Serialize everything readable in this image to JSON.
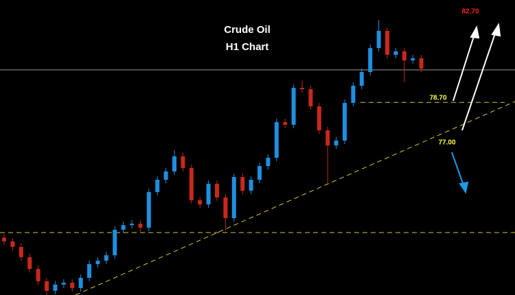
{
  "chart_data": {
    "type": "candlestick",
    "title": "Crude Oil",
    "subtitle": "H1 Chart",
    "ylim": [
      67.6,
      84.6
    ],
    "up_color": "#1e8fe0",
    "down_color": "#c8281e",
    "open": [
      70.9,
      70.69,
      70.37,
      69.78,
      69.1,
      68.39,
      67.84,
      68.2,
      68.31,
      68.0,
      68.59,
      69.38,
      69.58,
      69.89,
      71.36,
      71.63,
      71.71,
      71.48,
      73.53,
      74.24,
      74.72,
      75.59,
      74.92,
      73.06,
      72.82,
      74.01,
      73.22,
      72.03,
      74.4,
      73.61,
      74.24,
      75.03,
      75.51,
      77.56,
      77.41,
      79.54,
      79.46,
      78.47,
      77.09,
      76.22,
      76.5,
      78.67,
      79.66,
      80.45,
      81.83,
      82.82,
      81.44,
      81.64,
      81.12,
      81.24
    ],
    "high": [
      71.1,
      70.89,
      70.57,
      69.98,
      69.3,
      68.59,
      68.4,
      68.51,
      68.51,
      68.79,
      69.58,
      69.78,
      70.09,
      71.56,
      71.83,
      71.91,
      71.91,
      73.73,
      74.44,
      74.92,
      75.95,
      75.79,
      75.12,
      73.26,
      74.21,
      74.21,
      73.42,
      74.6,
      74.6,
      74.44,
      75.23,
      75.71,
      77.76,
      77.76,
      79.74,
      79.95,
      79.66,
      78.67,
      77.29,
      76.7,
      78.87,
      79.86,
      80.65,
      82.03,
      83.45,
      83.02,
      81.84,
      81.84,
      81.44,
      81.44
    ],
    "low": [
      70.49,
      70.17,
      69.58,
      68.9,
      68.19,
      67.6,
      67.64,
      68.0,
      67.8,
      67.8,
      68.39,
      69.18,
      69.38,
      69.69,
      71.16,
      71.43,
      71.28,
      71.28,
      73.33,
      74.04,
      74.52,
      74.72,
      72.86,
      72.62,
      72.62,
      73.02,
      71.3,
      71.83,
      73.41,
      73.41,
      74.04,
      74.83,
      75.31,
      77.21,
      77.21,
      79.26,
      78.27,
      76.89,
      74.0,
      76.02,
      76.3,
      78.47,
      79.46,
      80.25,
      81.63,
      81.24,
      81.24,
      79.85,
      80.92,
      80.45
    ],
    "close": [
      70.69,
      70.37,
      69.78,
      69.1,
      68.39,
      67.84,
      68.2,
      68.31,
      68.0,
      68.59,
      69.38,
      69.58,
      69.89,
      71.36,
      71.63,
      71.71,
      71.48,
      73.53,
      74.24,
      74.72,
      75.59,
      74.92,
      73.06,
      72.82,
      74.01,
      73.22,
      72.03,
      74.4,
      73.61,
      74.24,
      75.03,
      75.51,
      77.56,
      77.41,
      79.54,
      79.46,
      78.47,
      77.09,
      76.22,
      76.5,
      78.67,
      79.66,
      80.45,
      81.83,
      82.82,
      81.44,
      81.64,
      81.12,
      81.24,
      80.65
    ],
    "price_line": 80.57,
    "support_level": 71.2,
    "annotations": [
      {
        "label": "82.70",
        "value": 82.7,
        "color": "#ff2020"
      },
      {
        "label": "78.70",
        "value": 78.7,
        "color": "#ffff40"
      },
      {
        "label": "77.00",
        "value": 77.0,
        "color": "#ffff40"
      }
    ]
  }
}
